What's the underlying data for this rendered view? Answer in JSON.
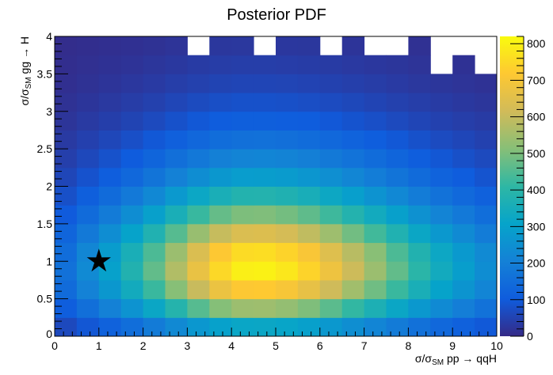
{
  "chart_data": {
    "type": "heatmap",
    "title": "Posterior PDF",
    "xlabel": {
      "main": "σ/σ",
      "sub": "SM",
      "rest": " pp → qqH"
    },
    "ylabel": {
      "main": "σ/σ",
      "sub": "SM",
      "rest": " gg → H"
    },
    "xlim": [
      0,
      10
    ],
    "ylim": [
      0,
      4
    ],
    "zlim": [
      0,
      820
    ],
    "x_ticks": [
      "0",
      "1",
      "2",
      "3",
      "4",
      "5",
      "6",
      "7",
      "8",
      "9",
      "10"
    ],
    "y_ticks": [
      "0",
      "0.5",
      "1",
      "1.5",
      "2",
      "2.5",
      "3",
      "3.5",
      "4"
    ],
    "z_ticks": [
      "0",
      "100",
      "200",
      "300",
      "400",
      "500",
      "600",
      "700",
      "800"
    ],
    "colormap": [
      "#352a87",
      "#0f5cdd",
      "#1481d6",
      "#06a4ca",
      "#2eb7a4",
      "#87bf77",
      "#d1bb59",
      "#fec832",
      "#f9fb0e"
    ],
    "x_bin_width": 0.5,
    "y_bin_width": 0.25,
    "rows_from_bottom": [
      [
        64,
        92,
        120,
        152,
        188,
        228,
        268,
        300,
        318,
        320,
        312,
        296,
        272,
        244,
        216,
        188,
        160,
        136,
        116,
        96
      ],
      [
        109,
        156,
        204,
        258,
        320,
        388,
        456,
        510,
        541,
        544,
        530,
        503,
        462,
        415,
        367,
        320,
        272,
        231,
        197,
        163
      ],
      [
        144,
        207,
        270,
        342,
        423,
        513,
        603,
        675,
        716,
        720,
        702,
        666,
        612,
        549,
        486,
        423,
        360,
        306,
        261,
        216
      ],
      [
        160,
        230,
        300,
        380,
        470,
        570,
        670,
        750,
        795,
        800,
        780,
        740,
        680,
        610,
        540,
        470,
        400,
        340,
        290,
        240
      ],
      [
        150,
        220,
        285,
        360,
        445,
        540,
        635,
        715,
        755,
        760,
        740,
        705,
        645,
        580,
        515,
        445,
        380,
        325,
        275,
        230
      ],
      [
        128,
        184,
        240,
        304,
        376,
        456,
        536,
        600,
        636,
        640,
        624,
        592,
        544,
        488,
        432,
        376,
        320,
        272,
        232,
        192
      ],
      [
        101,
        145,
        189,
        239,
        296,
        359,
        422,
        473,
        501,
        504,
        491,
        466,
        428,
        384,
        340,
        296,
        252,
        214,
        183,
        151
      ],
      [
        77,
        110,
        144,
        182,
        226,
        274,
        322,
        360,
        382,
        384,
        374,
        355,
        326,
        293,
        259,
        226,
        192,
        163,
        139,
        115
      ],
      [
        58,
        83,
        108,
        137,
        169,
        205,
        241,
        270,
        286,
        288,
        281,
        266,
        245,
        220,
        194,
        169,
        144,
        122,
        104,
        86
      ],
      [
        43,
        62,
        81,
        103,
        127,
        154,
        181,
        203,
        215,
        216,
        211,
        200,
        184,
        165,
        146,
        127,
        108,
        92,
        78,
        65
      ],
      [
        32,
        46,
        60,
        76,
        94,
        114,
        134,
        150,
        159,
        160,
        156,
        148,
        136,
        122,
        108,
        94,
        80,
        68,
        58,
        48
      ],
      [
        22,
        32,
        42,
        53,
        66,
        80,
        94,
        105,
        111,
        112,
        109,
        104,
        95,
        85,
        76,
        66,
        56,
        48,
        41,
        34
      ],
      [
        16,
        23,
        30,
        38,
        47,
        57,
        67,
        75,
        80,
        80,
        78,
        74,
        68,
        61,
        54,
        47,
        40,
        34,
        29,
        24
      ],
      [
        11,
        16,
        21,
        27,
        33,
        40,
        47,
        53,
        56,
        56,
        55,
        52,
        48,
        43,
        38,
        33,
        28,
        24,
        20,
        17
      ],
      [
        8,
        12,
        15,
        19,
        24,
        29,
        34,
        38,
        40,
        40,
        39,
        37,
        34,
        31,
        27,
        24,
        20,
        0,
        15,
        0
      ],
      [
        6,
        8,
        11,
        13,
        16,
        20,
        0,
        26,
        28,
        0,
        27,
        26,
        0,
        21,
        0,
        0,
        14,
        0,
        0,
        0
      ]
    ],
    "marker": {
      "shape": "star",
      "x": 1,
      "y": 1,
      "color": "#000000"
    }
  }
}
